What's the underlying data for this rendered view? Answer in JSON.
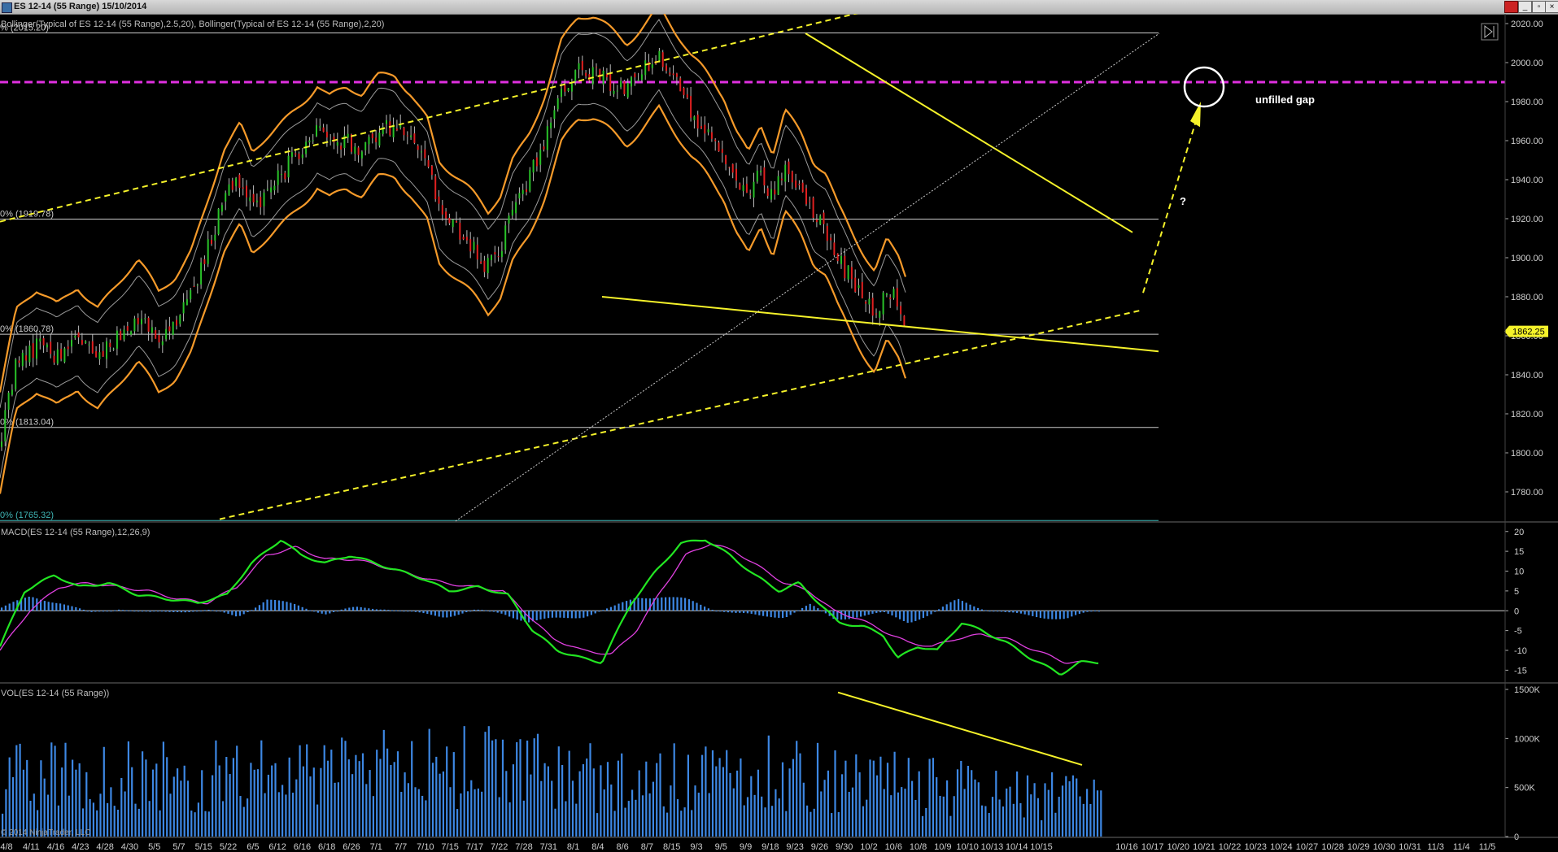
{
  "window": {
    "title": "ES 12-14 (55 Range)  15/10/2014",
    "min_label": "_",
    "max_label": "▫",
    "close_label": "×"
  },
  "chart_data": {
    "type": "candlestick",
    "panels": [
      {
        "name": "price",
        "legend": "Bollinger(Typical of ES 12-14 (55 Range),2.5,20), Bollinger(Typical of ES 12-14 (55 Range),2,20)",
        "ylim": [
          1765,
          2025
        ],
        "yticks": [
          2020,
          2000,
          1980,
          1960,
          1940,
          1920,
          1900,
          1880,
          1860,
          1840,
          1820,
          1800,
          1780
        ],
        "ytick_labels": [
          "2020.00",
          "2000.00",
          "1980.00",
          "1960.00",
          "1940.00",
          "1920.00",
          "1900.00",
          "1880.00",
          "1860.00",
          "1840.00",
          "1820.00",
          "1800.00",
          "1780.00"
        ],
        "last_price": 1862.25,
        "last_price_label": "1862.25",
        "fib_levels": [
          {
            "value": 2015.2,
            "label": "% (2015.20)",
            "color": "#cccccc"
          },
          {
            "value": 1919.78,
            "label": "0% (1919.78)",
            "color": "#cccccc"
          },
          {
            "value": 1860.78,
            "label": "0% (1860.78)",
            "color": "#cccccc"
          },
          {
            "value": 1813.04,
            "label": "0% (1813.04)",
            "color": "#cccccc"
          },
          {
            "value": 1765.32,
            "label": "0% (1765.32)",
            "color": "#3fb6b6"
          }
        ],
        "gap_level": 1990,
        "annotations": {
          "gap_text": "unfilled gap",
          "question": "?"
        },
        "price_path": [
          [
            0,
            1805
          ],
          [
            20,
            1845
          ],
          [
            45,
            1855
          ],
          [
            70,
            1850
          ],
          [
            95,
            1862
          ],
          [
            120,
            1850
          ],
          [
            145,
            1860
          ],
          [
            170,
            1870
          ],
          [
            195,
            1855
          ],
          [
            215,
            1865
          ],
          [
            235,
            1880
          ],
          [
            255,
            1905
          ],
          [
            275,
            1930
          ],
          [
            295,
            1940
          ],
          [
            310,
            1925
          ],
          [
            330,
            1935
          ],
          [
            350,
            1945
          ],
          [
            370,
            1955
          ],
          [
            390,
            1965
          ],
          [
            405,
            1958
          ],
          [
            425,
            1960
          ],
          [
            445,
            1955
          ],
          [
            465,
            1965
          ],
          [
            485,
            1968
          ],
          [
            505,
            1960
          ],
          [
            525,
            1948
          ],
          [
            540,
            1925
          ],
          [
            560,
            1915
          ],
          [
            580,
            1905
          ],
          [
            600,
            1895
          ],
          [
            615,
            1905
          ],
          [
            630,
            1925
          ],
          [
            650,
            1940
          ],
          [
            670,
            1960
          ],
          [
            690,
            1985
          ],
          [
            710,
            1995
          ],
          [
            730,
            1995
          ],
          [
            750,
            1990
          ],
          [
            770,
            1985
          ],
          [
            790,
            1995
          ],
          [
            810,
            2005
          ],
          [
            830,
            1990
          ],
          [
            850,
            1975
          ],
          [
            870,
            1965
          ],
          [
            890,
            1955
          ],
          [
            905,
            1940
          ],
          [
            920,
            1930
          ],
          [
            935,
            1945
          ],
          [
            950,
            1930
          ],
          [
            965,
            1950
          ],
          [
            985,
            1935
          ],
          [
            1000,
            1920
          ],
          [
            1015,
            1915
          ],
          [
            1030,
            1900
          ],
          [
            1045,
            1890
          ],
          [
            1060,
            1880
          ],
          [
            1075,
            1870
          ],
          [
            1090,
            1885
          ],
          [
            1105,
            1875
          ],
          [
            1115,
            1862
          ]
        ]
      },
      {
        "name": "macd",
        "legend": "MACD(ES 12-14 (55 Range),12,26,9)",
        "ylim": [
          -18,
          22
        ],
        "yticks": [
          20,
          15,
          10,
          5,
          0,
          -5,
          -10,
          -15
        ],
        "ytick_labels": [
          "20",
          "15",
          "10",
          "5",
          "0",
          "-5",
          "-10",
          "-15"
        ],
        "macd": [
          [
            0,
            -9
          ],
          [
            25,
            5
          ],
          [
            55,
            9
          ],
          [
            80,
            6
          ],
          [
            110,
            7
          ],
          [
            140,
            4
          ],
          [
            170,
            3
          ],
          [
            200,
            2
          ],
          [
            230,
            4
          ],
          [
            255,
            12
          ],
          [
            285,
            18
          ],
          [
            305,
            14
          ],
          [
            330,
            12
          ],
          [
            355,
            14
          ],
          [
            380,
            12
          ],
          [
            405,
            10
          ],
          [
            430,
            8
          ],
          [
            455,
            5
          ],
          [
            485,
            6
          ],
          [
            515,
            4
          ],
          [
            540,
            -5
          ],
          [
            565,
            -10
          ],
          [
            590,
            -12
          ],
          [
            610,
            -13
          ],
          [
            640,
            2
          ],
          [
            665,
            10
          ],
          [
            690,
            17
          ],
          [
            715,
            18
          ],
          [
            740,
            14
          ],
          [
            765,
            9
          ],
          [
            790,
            5
          ],
          [
            810,
            7
          ],
          [
            830,
            2
          ],
          [
            850,
            -3
          ],
          [
            875,
            -4
          ],
          [
            895,
            -6
          ],
          [
            910,
            -12
          ],
          [
            930,
            -9
          ],
          [
            950,
            -10
          ],
          [
            975,
            -3
          ],
          [
            995,
            -5
          ],
          [
            1020,
            -8
          ],
          [
            1045,
            -12
          ],
          [
            1075,
            -16
          ],
          [
            1095,
            -13
          ],
          [
            1110,
            -13
          ]
        ],
        "signal": [
          [
            0,
            -10
          ],
          [
            30,
            0
          ],
          [
            60,
            6
          ],
          [
            90,
            7
          ],
          [
            120,
            6
          ],
          [
            150,
            5
          ],
          [
            180,
            3
          ],
          [
            210,
            2
          ],
          [
            240,
            6
          ],
          [
            270,
            14
          ],
          [
            300,
            16
          ],
          [
            330,
            13
          ],
          [
            360,
            13
          ],
          [
            390,
            11
          ],
          [
            420,
            9
          ],
          [
            450,
            7
          ],
          [
            480,
            6
          ],
          [
            510,
            5
          ],
          [
            535,
            -1
          ],
          [
            560,
            -7
          ],
          [
            590,
            -10
          ],
          [
            620,
            -11
          ],
          [
            645,
            -5
          ],
          [
            670,
            5
          ],
          [
            695,
            14
          ],
          [
            720,
            17
          ],
          [
            745,
            15
          ],
          [
            770,
            11
          ],
          [
            795,
            7
          ],
          [
            820,
            5
          ],
          [
            845,
            0
          ],
          [
            870,
            -2
          ],
          [
            895,
            -5
          ],
          [
            920,
            -8
          ],
          [
            945,
            -9
          ],
          [
            970,
            -7
          ],
          [
            995,
            -6
          ],
          [
            1020,
            -7
          ],
          [
            1050,
            -10
          ],
          [
            1080,
            -13
          ],
          [
            1110,
            -13
          ]
        ],
        "histogram": [
          [
            0,
            1
          ],
          [
            30,
            5
          ],
          [
            60,
            3
          ],
          [
            90,
            -1
          ],
          [
            120,
            1
          ],
          [
            150,
            -1
          ],
          [
            180,
            0
          ],
          [
            210,
            0
          ],
          [
            240,
            -2
          ],
          [
            270,
            4
          ],
          [
            300,
            2
          ],
          [
            330,
            -1
          ],
          [
            360,
            1
          ],
          [
            390,
            1
          ],
          [
            420,
            -1
          ],
          [
            450,
            -2
          ],
          [
            480,
            0
          ],
          [
            510,
            -1
          ],
          [
            535,
            -4
          ],
          [
            560,
            -3
          ],
          [
            590,
            -2
          ],
          [
            620,
            1
          ],
          [
            645,
            5
          ],
          [
            670,
            5
          ],
          [
            695,
            4
          ],
          [
            720,
            1
          ],
          [
            745,
            -1
          ],
          [
            770,
            -2
          ],
          [
            795,
            -2
          ],
          [
            820,
            2
          ],
          [
            845,
            -3
          ],
          [
            870,
            -2
          ],
          [
            895,
            -1
          ],
          [
            920,
            -4
          ],
          [
            945,
            -1
          ],
          [
            970,
            4
          ],
          [
            995,
            1
          ],
          [
            1020,
            -1
          ],
          [
            1050,
            -2
          ],
          [
            1080,
            -3
          ],
          [
            1110,
            0
          ]
        ]
      },
      {
        "name": "volume",
        "legend": "VOL(ES 12-14 (55 Range))",
        "ylim": [
          0,
          1550
        ],
        "yticks": [
          1500,
          1000,
          500,
          0
        ],
        "ytick_labels": [
          "1500K",
          "1000K",
          "500K",
          "0"
        ],
        "volume_profile": [
          [
            0,
            650
          ],
          [
            120,
            700
          ],
          [
            250,
            680
          ],
          [
            400,
            760
          ],
          [
            500,
            800
          ],
          [
            640,
            620
          ],
          [
            780,
            760
          ],
          [
            850,
            650
          ],
          [
            950,
            580
          ],
          [
            1050,
            470
          ],
          [
            1110,
            420
          ]
        ]
      }
    ],
    "x_tick_labels": [
      "4/8",
      "4/11",
      "4/16",
      "4/23",
      "4/28",
      "4/30",
      "5/5",
      "5/7",
      "5/15",
      "5/22",
      "6/5",
      "6/12",
      "6/16",
      "6/18",
      "6/26",
      "7/1",
      "7/7",
      "7/10",
      "7/15",
      "7/17",
      "7/22",
      "7/28",
      "7/31",
      "8/1",
      "8/4",
      "8/6",
      "8/7",
      "8/15",
      "9/3",
      "9/5",
      "9/9",
      "9/18",
      "9/23",
      "9/26",
      "9/30",
      "10/2",
      "10/6",
      "10/8",
      "10/9",
      "10/10",
      "10/13",
      "10/14",
      "10/15",
      "10/16",
      "10/17",
      "10/20",
      "10/21",
      "10/22",
      "10/23",
      "10/24",
      "10/27",
      "10/28",
      "10/29",
      "10/30",
      "10/31",
      "11/3",
      "11/4",
      "11/5"
    ],
    "copyright": "© 2014 NinjaTrader, LLC"
  }
}
